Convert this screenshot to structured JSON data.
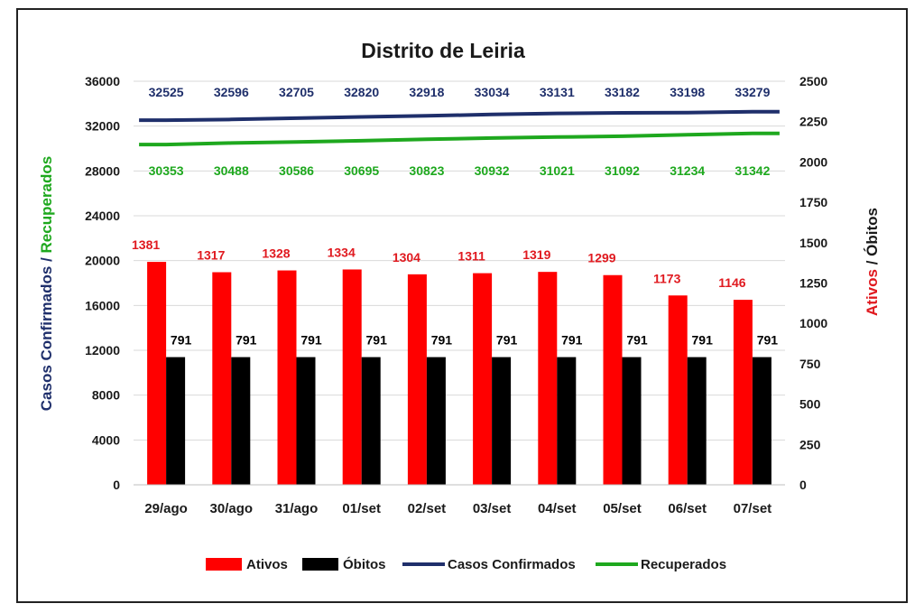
{
  "chart_data": {
    "type": "bar",
    "title": "Distrito de Leiria",
    "categories": [
      "29/ago",
      "30/ago",
      "31/ago",
      "01/set",
      "02/set",
      "03/set",
      "04/set",
      "05/set",
      "06/set",
      "07/set"
    ],
    "ylabel_left_part1": "Casos Confirmados /",
    "ylabel_left_part2": "Recuperados",
    "ylabel_right_part1": "Ativos",
    "ylabel_right_part2": "/ Óbitos",
    "ylim_left": [
      0,
      36000
    ],
    "ylim_right": [
      0,
      2500
    ],
    "yticks_left": [
      "36000",
      "32000",
      "28000",
      "24000",
      "20000",
      "16000",
      "12000",
      "8000",
      "4000",
      "0"
    ],
    "yticks_right": [
      "2500",
      "2250",
      "2000",
      "1750",
      "1500",
      "1250",
      "1000",
      "750",
      "500",
      "250",
      "0"
    ],
    "series": [
      {
        "name": "Ativos",
        "type": "bar",
        "axis": "right",
        "color": "#ff0000",
        "label_color": "#e0191f",
        "values": [
          1381,
          1317,
          1328,
          1334,
          1304,
          1311,
          1319,
          1299,
          1173,
          1146
        ]
      },
      {
        "name": "Óbitos",
        "type": "bar",
        "axis": "right",
        "color": "#000000",
        "label_color": "#000000",
        "values": [
          791,
          791,
          791,
          791,
          791,
          791,
          791,
          791,
          791,
          791
        ]
      },
      {
        "name": "Casos Confirmados",
        "type": "line",
        "axis": "left",
        "color": "#1f2f6b",
        "label_color": "#1f2f6b",
        "values": [
          32525,
          32596,
          32705,
          32820,
          32918,
          33034,
          33131,
          33182,
          33198,
          33279
        ]
      },
      {
        "name": "Recuperados",
        "type": "line",
        "axis": "left",
        "color": "#1ea81e",
        "label_color": "#1ea81e",
        "values": [
          30353,
          30488,
          30586,
          30695,
          30823,
          30932,
          31021,
          31092,
          31234,
          31342
        ]
      }
    ],
    "grid": true,
    "legend_position": "bottom"
  },
  "colors": {
    "left_axis_part1": "#1f2f6b",
    "left_axis_part2": "#1ea81e",
    "right_axis_part1": "#e0191f",
    "right_axis_part2": "#1a1a1a",
    "grid": "#d9d9d9",
    "tick_text": "#1a1a1a"
  }
}
